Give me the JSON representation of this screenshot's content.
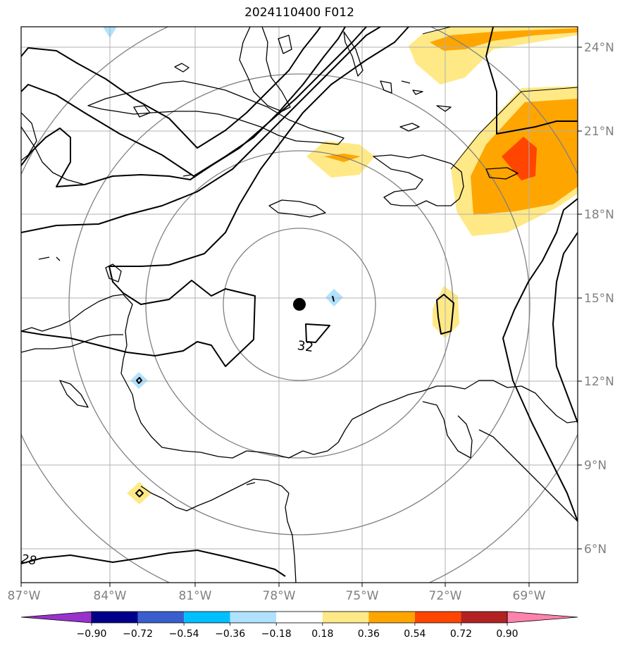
{
  "title": "2024110400 F012",
  "map": {
    "lon_labels": [
      "87°W",
      "84°W",
      "81°W",
      "78°W",
      "75°W",
      "72°W",
      "69°W"
    ],
    "lat_labels": [
      "24°N",
      "21°N",
      "18°N",
      "15°N",
      "12°N",
      "9°N",
      "6°N"
    ],
    "lon_values": [
      -87,
      -84,
      -81,
      -78,
      -75,
      -72,
      -69
    ],
    "lat_values": [
      24,
      21,
      18,
      15,
      12,
      9,
      6
    ],
    "lon_range": [
      -87,
      -67.5
    ],
    "lat_range": [
      4.9,
      24.8
    ],
    "storm_center": {
      "lon": -77.3,
      "lat": 14.8
    },
    "contour_labels": [
      "32",
      "28"
    ]
  },
  "colorbar": {
    "tick_labels": [
      "−0.90",
      "−0.72",
      "−0.54",
      "−0.36",
      "−0.18",
      "0.18",
      "0.36",
      "0.54",
      "0.72",
      "0.90"
    ],
    "colors": [
      "#9932cc",
      "#00008b",
      "#3a5fcd",
      "#00bfff",
      "#b0e2ff",
      "#ffffff",
      "#ffe987",
      "#ffa500",
      "#ff4500",
      "#b22222",
      "#ff82ab"
    ],
    "extend": "both"
  }
}
